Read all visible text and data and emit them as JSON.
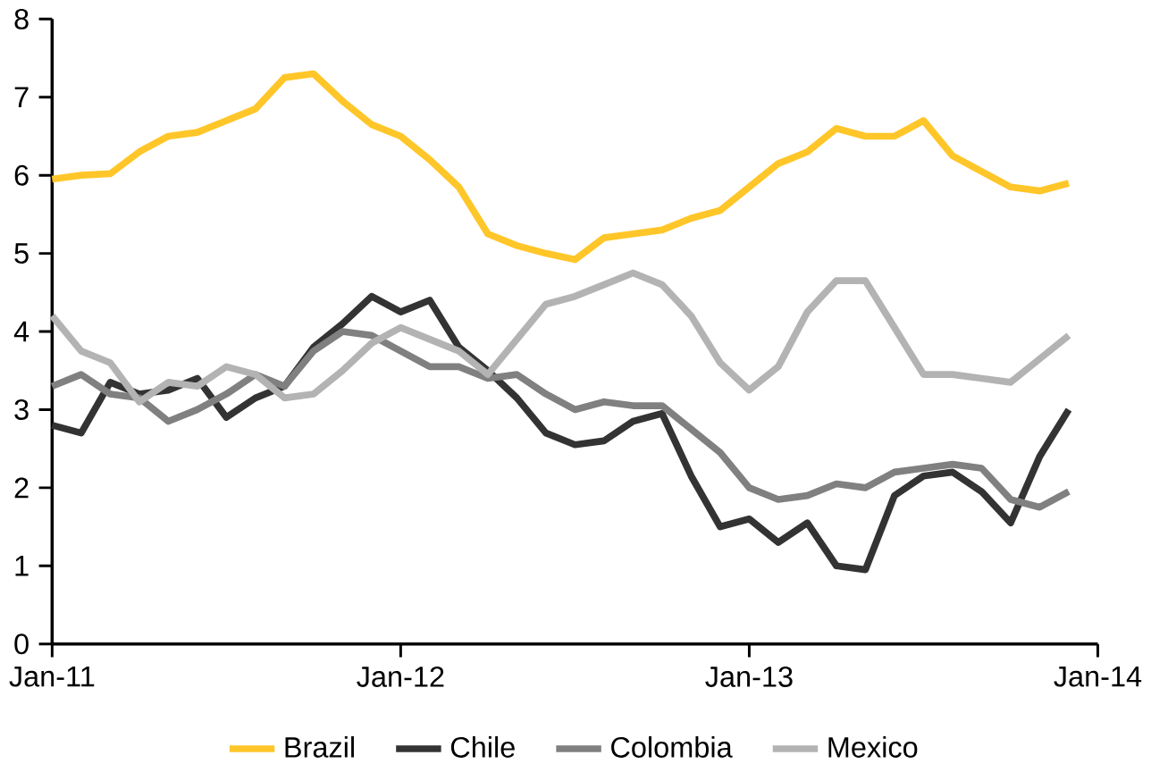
{
  "chart_data": {
    "type": "line",
    "x": [
      "2011-01",
      "2011-02",
      "2011-03",
      "2011-04",
      "2011-05",
      "2011-06",
      "2011-07",
      "2011-08",
      "2011-09",
      "2011-10",
      "2011-11",
      "2011-12",
      "2012-01",
      "2012-02",
      "2012-03",
      "2012-04",
      "2012-05",
      "2012-06",
      "2012-07",
      "2012-08",
      "2012-09",
      "2012-10",
      "2012-11",
      "2012-12",
      "2013-01",
      "2013-02",
      "2013-03",
      "2013-04",
      "2013-05",
      "2013-06",
      "2013-07",
      "2013-08",
      "2013-09",
      "2013-10",
      "2013-11",
      "2013-12"
    ],
    "series": [
      {
        "name": "Brazil",
        "color": "#ffc629",
        "values": [
          5.95,
          6.0,
          6.02,
          6.3,
          6.5,
          6.55,
          6.7,
          6.85,
          7.25,
          7.3,
          6.95,
          6.65,
          6.5,
          6.2,
          5.85,
          5.25,
          5.1,
          5.0,
          4.92,
          5.2,
          5.25,
          5.3,
          5.45,
          5.55,
          5.85,
          6.15,
          6.3,
          6.6,
          6.5,
          6.5,
          6.7,
          6.25,
          6.05,
          5.85,
          5.8,
          5.9
        ]
      },
      {
        "name": "Chile",
        "color": "#333333",
        "values": [
          2.8,
          2.7,
          3.35,
          3.2,
          3.25,
          3.4,
          2.9,
          3.15,
          3.3,
          3.8,
          4.1,
          4.45,
          4.25,
          4.4,
          3.8,
          3.5,
          3.15,
          2.7,
          2.55,
          2.6,
          2.85,
          2.95,
          2.15,
          1.5,
          1.6,
          1.3,
          1.55,
          1.0,
          0.95,
          1.9,
          2.15,
          2.2,
          1.95,
          1.55,
          2.4,
          3.0
        ]
      },
      {
        "name": "Colombia",
        "color": "#808080",
        "values": [
          3.3,
          3.45,
          3.2,
          3.15,
          2.85,
          3.0,
          3.2,
          3.45,
          3.3,
          3.75,
          4.0,
          3.95,
          3.75,
          3.55,
          3.55,
          3.4,
          3.45,
          3.2,
          3.0,
          3.1,
          3.05,
          3.05,
          2.75,
          2.45,
          2.0,
          1.85,
          1.9,
          2.05,
          2.0,
          2.2,
          2.25,
          2.3,
          2.25,
          1.85,
          1.75,
          1.95
        ]
      },
      {
        "name": "Mexico",
        "color": "#b3b3b3",
        "values": [
          4.2,
          3.75,
          3.6,
          3.1,
          3.35,
          3.3,
          3.55,
          3.45,
          3.15,
          3.2,
          3.5,
          3.85,
          4.05,
          3.9,
          3.75,
          3.45,
          3.9,
          4.35,
          4.45,
          4.6,
          4.75,
          4.6,
          4.2,
          3.6,
          3.25,
          3.55,
          4.25,
          4.65,
          4.65,
          4.05,
          3.45,
          3.45,
          3.4,
          3.35,
          3.65,
          3.95
        ]
      }
    ],
    "xlim": [
      "2011-01",
      "2014-01"
    ],
    "xticks": [
      {
        "value": "2011-01",
        "label": "Jan-11"
      },
      {
        "value": "2012-01",
        "label": "Jan-12"
      },
      {
        "value": "2013-01",
        "label": "Jan-13"
      },
      {
        "value": "2014-01",
        "label": "Jan-14"
      }
    ],
    "ylim": [
      0,
      8
    ],
    "yticks": [
      0,
      1,
      2,
      3,
      4,
      5,
      6,
      7,
      8
    ],
    "grid": false,
    "legend": "bottom",
    "marker": "none",
    "line_style": "solid"
  }
}
